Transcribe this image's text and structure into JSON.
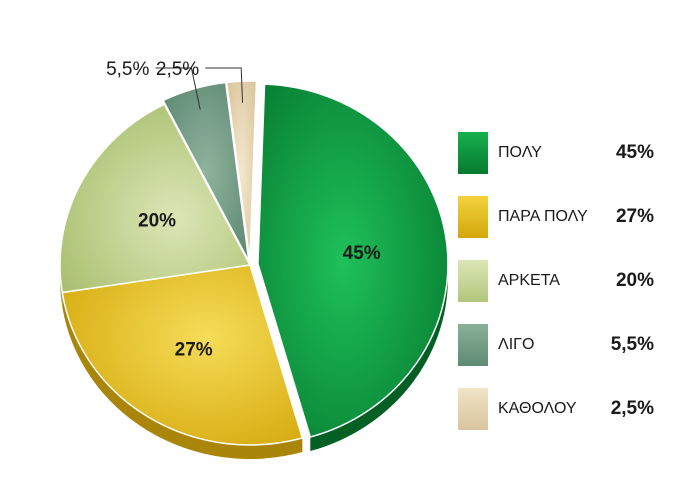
{
  "chart_data": {
    "type": "pie",
    "title": "",
    "categories": [
      "ΠΟΛΥ",
      "ΠΑΡΑ ΠΟΛΥ",
      "ΑΡΚΕΤΑ",
      "ΛΙΓΟ",
      "ΚΑΘΟΛΟΥ"
    ],
    "values": [
      45,
      27,
      20,
      5.5,
      2.5
    ],
    "labels": [
      "45%",
      "27%",
      "20%",
      "5,5%",
      "2,5%"
    ],
    "colors": [
      "#0a9a3e",
      "#e3bd1a",
      "#c3d293",
      "#6f9a82",
      "#e8d6b2"
    ],
    "legend_placement": "right"
  }
}
